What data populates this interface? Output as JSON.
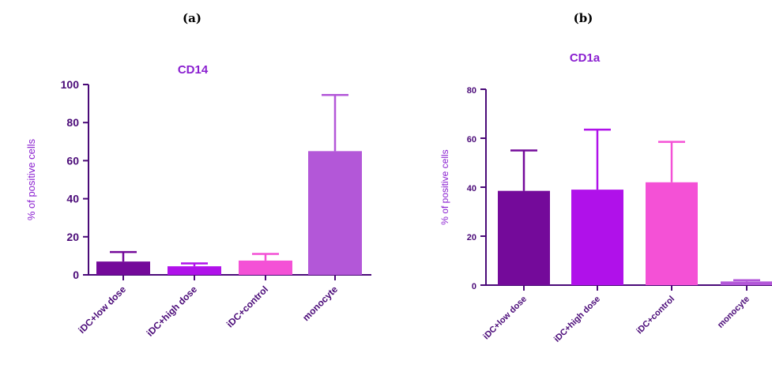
{
  "panels": [
    {
      "letter": "(a)"
    },
    {
      "letter": "(b)"
    }
  ],
  "colors": {
    "axis": "#4a0a78",
    "title": "#8a1fd0",
    "ylabel": "#8a1fd0"
  },
  "chart_data": [
    {
      "type": "bar",
      "title": "CD14",
      "xlabel": "",
      "ylabel": "% of positive cells",
      "ylim": [
        0,
        100
      ],
      "yticks": [
        0,
        20,
        40,
        60,
        80,
        100
      ],
      "grid": false,
      "categories": [
        "iDC+low dose",
        "iDC+high dose",
        "iDC+control",
        "monocyte"
      ],
      "values": [
        7,
        4.5,
        7.5,
        65
      ],
      "error_upper": [
        12,
        6,
        11,
        94.5
      ],
      "bar_colors": [
        "#740a9a",
        "#b011ea",
        "#f451d6",
        "#b357d8"
      ]
    },
    {
      "type": "bar",
      "title": "CD1a",
      "xlabel": "",
      "ylabel": "% of positive cells",
      "ylim": [
        0,
        80
      ],
      "yticks": [
        0,
        20,
        40,
        60,
        80
      ],
      "grid": false,
      "categories": [
        "iDC+low dose",
        "iDC+high dose",
        "iDC+control",
        "monocyte"
      ],
      "values": [
        38.5,
        39,
        42,
        1.5
      ],
      "error_upper": [
        55,
        63.5,
        58.5,
        2
      ],
      "bar_colors": [
        "#740a9a",
        "#b011ea",
        "#f451d6",
        "#b357d8"
      ]
    }
  ]
}
